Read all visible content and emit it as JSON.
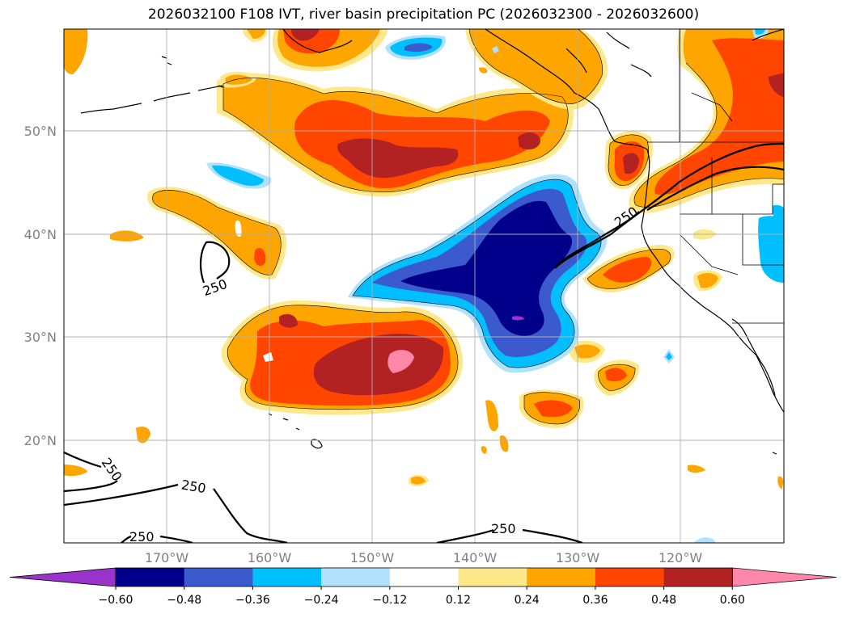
{
  "title": "2026032100 F108 IVT, river basin precipitation PC (2026032300 - 2026032600)",
  "lat_labels": [
    "50°N",
    "40°N",
    "30°N",
    "20°N"
  ],
  "lon_labels": [
    "170°W",
    "160°W",
    "150°W",
    "140°W",
    "130°W",
    "120°W"
  ],
  "contour_labels": [
    "250",
    "250",
    "250",
    "250",
    "250",
    "250"
  ],
  "colorbar": {
    "ticks": [
      "−0.60",
      "−0.48",
      "−0.36",
      "−0.24",
      "−0.12",
      "0.12",
      "0.24",
      "0.36",
      "0.48",
      "0.60"
    ],
    "colors": [
      "#9933cc",
      "#00008b",
      "#3a5acd",
      "#00bfff",
      "#b0e2ff",
      "#ffffff",
      "#ffe88a",
      "#ffa500",
      "#ff4500",
      "#b22222",
      "#ff88aa"
    ]
  },
  "colors": {
    "c012": "#ffe88a",
    "c024": "#ffa500",
    "c036": "#ff4500",
    "c048": "#b22222",
    "c060": "#ff88aa",
    "cn012": "#b0e2ff",
    "cn024": "#00bfff",
    "cn036": "#3a5acd",
    "cn048": "#00008b",
    "cn060": "#9933cc"
  }
}
